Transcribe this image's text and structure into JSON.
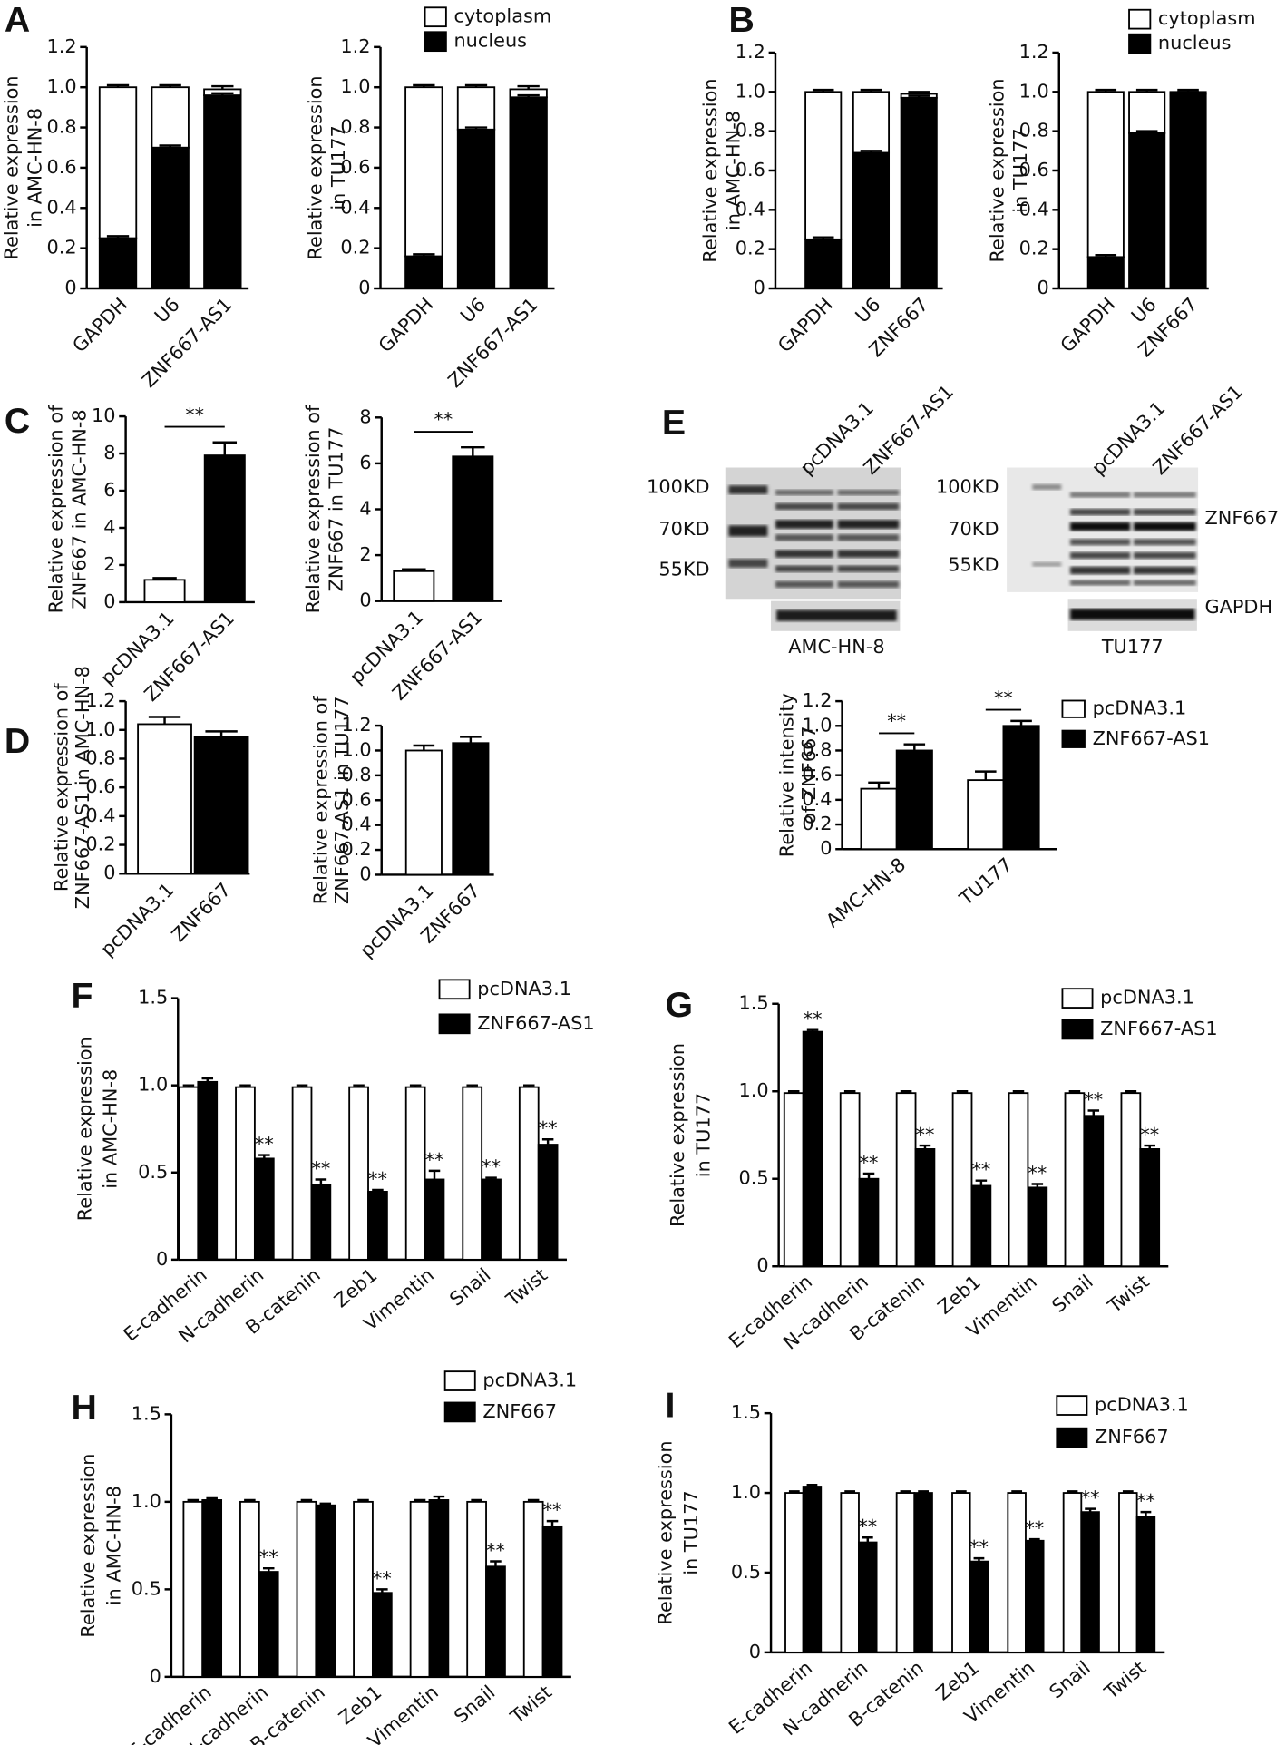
{
  "chart_data": [
    {
      "panel": "A",
      "type": "bar",
      "stacked": true,
      "ylabel": [
        "Relative expression",
        "in AMC-HN-8"
      ],
      "categories": [
        "GAPDH",
        "U6",
        "ZNF667-AS1"
      ],
      "series": [
        {
          "color": "#ffffff",
          "values": [
            0.75,
            0.3,
            0.03
          ],
          "errors": [
            0.01,
            0.01,
            0.015
          ]
        },
        {
          "color": "#000000",
          "values": [
            0.25,
            0.7,
            0.96
          ],
          "errors": [
            0.01,
            0.01,
            0.01
          ]
        }
      ],
      "ylim": [
        0,
        1.2
      ],
      "yticks": [
        0,
        0.2,
        0.4,
        0.6,
        0.8,
        {
          "value": 1,
          "label": "1.0"
        },
        1.2
      ]
    },
    {
      "type": "bar",
      "stacked": true,
      "ylabel": [
        "Relative expression",
        "in TU177"
      ],
      "categories": [
        "GAPDH",
        "U6",
        "ZNF667-AS1"
      ],
      "series": [
        {
          "name": "cytoplasm",
          "color": "#ffffff",
          "values": [
            0.84,
            0.21,
            0.04
          ],
          "errors": [
            0.01,
            0.01,
            0.015
          ]
        },
        {
          "name": "nucleus",
          "color": "#000000",
          "values": [
            0.16,
            0.79,
            0.95
          ],
          "errors": [
            0.01,
            0.01,
            0.01
          ]
        }
      ],
      "ylim": [
        0,
        1.2
      ],
      "yticks": [
        0,
        0.2,
        0.4,
        0.6,
        0.8,
        {
          "value": 1,
          "label": "1.0"
        },
        1.2
      ]
    },
    {
      "panel": "B",
      "type": "bar",
      "stacked": true,
      "ylabel": [
        "Relative expression",
        "in AMC-HN-8"
      ],
      "categories": [
        "GAPDH",
        "U6",
        "ZNF667"
      ],
      "series": [
        {
          "color": "#ffffff",
          "values": [
            0.75,
            0.31,
            0.02
          ],
          "errors": [
            0.01,
            0.01,
            0.01
          ]
        },
        {
          "color": "#000000",
          "values": [
            0.25,
            0.69,
            0.97
          ],
          "errors": [
            0.01,
            0.01,
            0.01
          ]
        }
      ],
      "ylim": [
        0,
        1.2
      ],
      "yticks": [
        0,
        0.2,
        0.4,
        0.6,
        0.8,
        {
          "value": 1,
          "label": "1.0"
        },
        1.2
      ]
    },
    {
      "type": "bar",
      "stacked": true,
      "ylabel": [
        "Relative expression",
        "in TU177"
      ],
      "categories": [
        "GAPDH",
        "U6",
        "ZNF667"
      ],
      "series": [
        {
          "name": "cytoplasm",
          "color": "#ffffff",
          "values": [
            0.84,
            0.21,
            0.01
          ],
          "errors": [
            0.01,
            0.01,
            0.01
          ]
        },
        {
          "name": "nucleus",
          "color": "#000000",
          "values": [
            0.16,
            0.79,
            0.99
          ],
          "errors": [
            0.01,
            0.01,
            0.01
          ]
        }
      ],
      "ylim": [
        0,
        1.2
      ],
      "yticks": [
        0,
        0.2,
        0.4,
        0.6,
        0.8,
        {
          "value": 1,
          "label": "1.0"
        },
        1.2
      ]
    },
    {
      "panel": "C",
      "type": "bar",
      "ylabel": [
        "Relative expression of",
        "ZNF667 in AMC-HN-8"
      ],
      "categories": [
        "pcDNA3.1",
        "ZNF667-AS1"
      ],
      "series": [
        {
          "colors": [
            "#ffffff",
            "#000000"
          ],
          "values": [
            1.2,
            7.9
          ],
          "errors": [
            0.1,
            0.7
          ]
        }
      ],
      "bracket": "**",
      "ylim": [
        0,
        10
      ],
      "yticks": [
        0,
        2,
        4,
        6,
        8,
        10
      ]
    },
    {
      "type": "bar",
      "ylabel": [
        "Relative expression of",
        "ZNF667 in TU177"
      ],
      "categories": [
        "pcDNA3.1",
        "ZNF667-AS1"
      ],
      "series": [
        {
          "colors": [
            "#ffffff",
            "#000000"
          ],
          "values": [
            1.3,
            6.3
          ],
          "errors": [
            0.08,
            0.4
          ]
        }
      ],
      "bracket": "**",
      "ylim": [
        0,
        8
      ],
      "yticks": [
        0,
        2,
        4,
        6,
        8
      ]
    },
    {
      "panel": "D",
      "type": "bar",
      "ylabel": [
        "Relative expression of",
        "ZNF667-AS1 in AMC-HN-8"
      ],
      "categories": [
        "pcDNA3.1",
        "ZNF667"
      ],
      "series": [
        {
          "colors": [
            "#ffffff",
            "#000000"
          ],
          "values": [
            1.04,
            0.95
          ],
          "errors": [
            0.05,
            0.04
          ]
        }
      ],
      "ylim": [
        0,
        1.2
      ],
      "yticks": [
        0,
        0.2,
        0.4,
        0.6,
        0.8,
        {
          "value": 1,
          "label": "1.0"
        },
        1.2
      ]
    },
    {
      "type": "bar",
      "ylabel": [
        "Relative expression of",
        "ZNF667-AS1 in TU177"
      ],
      "categories": [
        "pcDNA3.1",
        "ZNF667"
      ],
      "series": [
        {
          "colors": [
            "#ffffff",
            "#000000"
          ],
          "values": [
            1.0,
            1.06
          ],
          "errors": [
            0.04,
            0.05
          ]
        }
      ],
      "ylim": [
        0,
        1.2
      ],
      "yticks": [
        0,
        0.2,
        0.4,
        0.6,
        0.8,
        {
          "value": 1,
          "label": "1.0"
        },
        1.2
      ]
    },
    {
      "panel": "E",
      "type": "bar",
      "ylabel": [
        "Relative intensity",
        "of ZNF667"
      ],
      "categories": [
        "AMC-HN-8",
        "TU177"
      ],
      "series": [
        {
          "name": "pcDNA3.1",
          "color": "#ffffff",
          "values": [
            0.49,
            0.56
          ],
          "errors": [
            0.05,
            0.07
          ]
        },
        {
          "name": "ZNF667-AS1",
          "color": "#000000",
          "values": [
            0.8,
            1.0
          ],
          "errors": [
            0.05,
            0.04
          ]
        }
      ],
      "group_brackets": [
        "**",
        "**"
      ],
      "ylim": [
        0,
        1.2
      ],
      "yticks": [
        0,
        0.2,
        0.4,
        0.6,
        0.8,
        {
          "value": 1,
          "label": "1.0"
        },
        1.2
      ]
    },
    {
      "panel": "F",
      "type": "bar",
      "ylabel": [
        "Relative expression",
        "in AMC-HN-8"
      ],
      "categories": [
        "E-cadherin",
        "N-cadherin",
        "B-catenin",
        "Zeb1",
        "Vimentin",
        "Snail",
        "Twist"
      ],
      "series": [
        {
          "name": "pcDNA3.1",
          "color": "#ffffff",
          "values": [
            0.99,
            0.99,
            0.99,
            0.99,
            0.99,
            0.99,
            0.99
          ],
          "errors": [
            0.01,
            0.01,
            0.01,
            0.01,
            0.01,
            0.01,
            0.01
          ]
        },
        {
          "name": "ZNF667-AS1",
          "color": "#000000",
          "values": [
            1.02,
            0.58,
            0.43,
            0.39,
            0.46,
            0.46,
            0.66
          ],
          "errors": [
            0.02,
            0.02,
            0.03,
            0.01,
            0.05,
            0.01,
            0.03
          ],
          "labels": [
            null,
            "**",
            "**",
            "**",
            "**",
            "**",
            "**"
          ]
        }
      ],
      "ylim": [
        0,
        1.5
      ],
      "yticks": [
        0,
        0.5,
        {
          "value": 1,
          "label": "1.0"
        },
        1.5
      ]
    },
    {
      "panel": "G",
      "type": "bar",
      "ylabel": [
        "Relative expression",
        "in TU177"
      ],
      "categories": [
        "E-cadherin",
        "N-cadherin",
        "B-catenin",
        "Zeb1",
        "Vimentin",
        "Snail",
        "Twist"
      ],
      "series": [
        {
          "name": "pcDNA3.1",
          "color": "#ffffff",
          "values": [
            0.99,
            0.99,
            0.99,
            0.99,
            0.99,
            0.99,
            0.99
          ],
          "errors": [
            0.01,
            0.01,
            0.01,
            0.01,
            0.01,
            0.01,
            0.01
          ]
        },
        {
          "name": "ZNF667-AS1",
          "color": "#000000",
          "values": [
            1.34,
            0.5,
            0.67,
            0.46,
            0.45,
            0.86,
            0.67
          ],
          "errors": [
            0.01,
            0.03,
            0.02,
            0.03,
            0.02,
            0.03,
            0.02
          ],
          "labels": [
            "**",
            "**",
            "**",
            "**",
            "**",
            "**",
            "**"
          ]
        }
      ],
      "ylim": [
        0,
        1.5
      ],
      "yticks": [
        0,
        0.5,
        {
          "value": 1,
          "label": "1.0"
        },
        1.5
      ]
    },
    {
      "panel": "H",
      "type": "bar",
      "ylabel": [
        "Relative expression",
        "in AMC-HN-8"
      ],
      "categories": [
        "E-cadherin",
        "N-cadherin",
        "B-catenin",
        "Zeb1",
        "Vimentin",
        "Snail",
        "Twist"
      ],
      "series": [
        {
          "name": "pcDNA3.1",
          "color": "#ffffff",
          "values": [
            1.0,
            1.0,
            1.0,
            1.0,
            1.0,
            1.0,
            1.0
          ],
          "errors": [
            0.01,
            0.01,
            0.01,
            0.01,
            0.01,
            0.01,
            0.01
          ]
        },
        {
          "name": "ZNF667",
          "color": "#000000",
          "values": [
            1.01,
            0.6,
            0.98,
            0.48,
            1.01,
            0.63,
            0.86
          ],
          "errors": [
            0.01,
            0.02,
            0.01,
            0.02,
            0.02,
            0.03,
            0.03
          ],
          "labels": [
            null,
            "**",
            null,
            "**",
            null,
            "**",
            "**"
          ]
        }
      ],
      "ylim": [
        0,
        1.5
      ],
      "yticks": [
        0,
        0.5,
        {
          "value": 1,
          "label": "1.0"
        },
        1.5
      ]
    },
    {
      "panel": "I",
      "type": "bar",
      "ylabel": [
        "Relative expression",
        "in TU177"
      ],
      "categories": [
        "E-cadherin",
        "N-cadherin",
        "B-catenin",
        "Zeb1",
        "Vimentin",
        "Snail",
        "Twist"
      ],
      "series": [
        {
          "name": "pcDNA3.1",
          "color": "#ffffff",
          "values": [
            1.0,
            1.0,
            1.0,
            1.0,
            1.0,
            1.0,
            1.0
          ],
          "errors": [
            0.01,
            0.01,
            0.01,
            0.01,
            0.01,
            0.01,
            0.01
          ]
        },
        {
          "name": "ZNF667",
          "color": "#000000",
          "values": [
            1.04,
            0.69,
            1.0,
            0.57,
            0.7,
            0.88,
            0.85
          ],
          "errors": [
            0.01,
            0.03,
            0.01,
            0.02,
            0.01,
            0.02,
            0.03
          ],
          "labels": [
            null,
            "**",
            null,
            "**",
            "**",
            "**",
            "**"
          ]
        }
      ],
      "ylim": [
        0,
        1.5
      ],
      "yticks": [
        0,
        0.5,
        {
          "value": 1,
          "label": "1.0"
        },
        1.5
      ]
    }
  ],
  "blots": [
    {
      "lanes": [
        "pcDNA3.1",
        "ZNF667-AS1"
      ],
      "markers": [
        "100KD",
        "70KD",
        "55KD"
      ],
      "cell_line": "AMC-HN-8"
    },
    {
      "lanes": [
        "pcDNA3.1",
        "ZNF667-AS1"
      ],
      "markers": [
        "100KD",
        "70KD",
        "55KD"
      ],
      "cell_line": "TU177",
      "proteins": [
        "ZNF667",
        "GAPDH"
      ]
    }
  ]
}
